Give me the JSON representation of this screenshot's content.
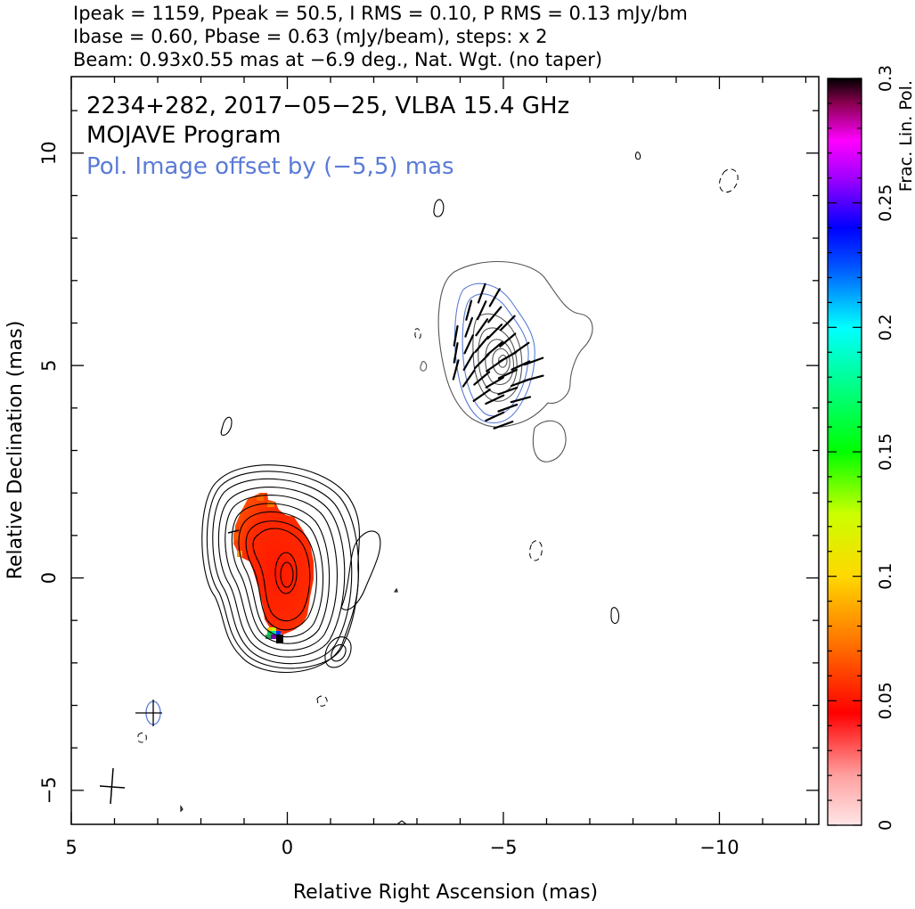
{
  "header": {
    "line1": "Ipeak = 1159, Ppeak = 50.5, I RMS = 0.10, P RMS = 0.13 mJy/bm",
    "line2": "Ibase = 0.60, Pbase = 0.63 (mJy/beam), steps: x 2",
    "line3": "Beam: 0.93x0.55 mas at −6.9 deg., Nat. Wgt. (no taper)"
  },
  "plot": {
    "title_source": "2234+282, 2017−05−25, VLBA 15.4 GHz",
    "title_program": "MOJAVE Program",
    "title_offset": "Pol. Image offset by (−5,5) mas"
  },
  "colors": {
    "pol_contour": "#5a7bd6",
    "offset_text": "#5a7bd6",
    "frac_pol_core": "#ff2a00"
  },
  "chart_data": {
    "type": "contour",
    "xlabel": "Relative Right Ascension (mas)",
    "ylabel": "Relative Declination (mas)",
    "xlim": [
      5,
      -12.3
    ],
    "ylim": [
      -5.8,
      11.8
    ],
    "x_ticks": [
      {
        "value": 5,
        "label": "5"
      },
      {
        "value": 0,
        "label": "0"
      },
      {
        "value": -5,
        "label": "−5"
      },
      {
        "value": -10,
        "label": "−10"
      }
    ],
    "y_ticks": [
      {
        "value": -5,
        "label": "−5"
      },
      {
        "value": 0,
        "label": "0"
      },
      {
        "value": 5,
        "label": "5"
      },
      {
        "value": 10,
        "label": "10"
      }
    ],
    "stokes_I": {
      "peak_mJy_per_beam": 1159,
      "rms_mJy_per_beam": 0.1,
      "base_mJy_per_beam": 0.6,
      "step_factor": 2,
      "core_position": [
        0,
        0
      ],
      "contour_levels": 11
    },
    "polarization": {
      "peak_mJy_per_beam": 50.5,
      "rms_mJy_per_beam": 0.13,
      "base_mJy_per_beam": 0.63,
      "offset_mas": [
        -5,
        5
      ]
    },
    "beam": {
      "major_mas": 0.93,
      "minor_mas": 0.55,
      "pa_deg": -6.9
    },
    "colorbar": {
      "label": "Frac. Lin. Pol.",
      "min": 0,
      "max": 0.3,
      "ticks": [
        {
          "value": 0,
          "label": "0"
        },
        {
          "value": 0.05,
          "label": "0.05"
        },
        {
          "value": 0.1,
          "label": "0.1"
        },
        {
          "value": 0.15,
          "label": "0.15"
        },
        {
          "value": 0.2,
          "label": "0.2"
        },
        {
          "value": 0.25,
          "label": "0.25"
        },
        {
          "value": 0.3,
          "label": "0.3"
        }
      ],
      "stops": [
        {
          "v": 0.0,
          "c": "#ffe6e6"
        },
        {
          "v": 0.02,
          "c": "#ffa0a0"
        },
        {
          "v": 0.045,
          "c": "#ff0000"
        },
        {
          "v": 0.075,
          "c": "#ff7a00"
        },
        {
          "v": 0.1,
          "c": "#ffd800"
        },
        {
          "v": 0.125,
          "c": "#ccff00"
        },
        {
          "v": 0.15,
          "c": "#00ff00"
        },
        {
          "v": 0.18,
          "c": "#00ff9a"
        },
        {
          "v": 0.2,
          "c": "#00ffff"
        },
        {
          "v": 0.225,
          "c": "#0050ff"
        },
        {
          "v": 0.24,
          "c": "#0000ff"
        },
        {
          "v": 0.26,
          "c": "#a000ff"
        },
        {
          "v": 0.275,
          "c": "#ff00ff"
        },
        {
          "v": 0.29,
          "c": "#8a0050"
        },
        {
          "v": 0.3,
          "c": "#000000"
        }
      ]
    },
    "evpa_vectors": [
      {
        "x": -3.9,
        "y": 5.7,
        "angle": 100
      },
      {
        "x": -4.2,
        "y": 6.3,
        "angle": 105
      },
      {
        "x": -4.5,
        "y": 6.7,
        "angle": 110
      },
      {
        "x": -3.9,
        "y": 5.3,
        "angle": 100
      },
      {
        "x": -4.2,
        "y": 5.9,
        "angle": 110
      },
      {
        "x": -4.5,
        "y": 6.3,
        "angle": 115
      },
      {
        "x": -4.8,
        "y": 6.6,
        "angle": 120
      },
      {
        "x": -3.9,
        "y": 4.9,
        "angle": 105
      },
      {
        "x": -4.2,
        "y": 5.5,
        "angle": 115
      },
      {
        "x": -4.5,
        "y": 5.9,
        "angle": 125
      },
      {
        "x": -4.8,
        "y": 6.2,
        "angle": 130
      },
      {
        "x": -5.1,
        "y": 6.0,
        "angle": 135
      },
      {
        "x": -4.2,
        "y": 5.1,
        "angle": 120
      },
      {
        "x": -4.5,
        "y": 5.5,
        "angle": 130
      },
      {
        "x": -4.8,
        "y": 5.8,
        "angle": 135
      },
      {
        "x": -5.1,
        "y": 5.6,
        "angle": 140
      },
      {
        "x": -5.4,
        "y": 5.4,
        "angle": 145
      },
      {
        "x": -4.2,
        "y": 4.7,
        "angle": 125
      },
      {
        "x": -4.5,
        "y": 5.1,
        "angle": 135
      },
      {
        "x": -4.8,
        "y": 5.4,
        "angle": 140
      },
      {
        "x": -5.1,
        "y": 5.2,
        "angle": 150
      },
      {
        "x": -5.4,
        "y": 5.0,
        "angle": 155
      },
      {
        "x": -5.7,
        "y": 5.1,
        "angle": 160
      },
      {
        "x": -4.5,
        "y": 4.7,
        "angle": 140
      },
      {
        "x": -4.8,
        "y": 5.0,
        "angle": 145
      },
      {
        "x": -5.1,
        "y": 4.8,
        "angle": 155
      },
      {
        "x": -5.4,
        "y": 4.6,
        "angle": 160
      },
      {
        "x": -5.7,
        "y": 4.7,
        "angle": 165
      },
      {
        "x": -4.5,
        "y": 4.3,
        "angle": 145
      },
      {
        "x": -4.8,
        "y": 4.6,
        "angle": 150
      },
      {
        "x": -5.1,
        "y": 4.4,
        "angle": 160
      },
      {
        "x": -5.4,
        "y": 4.2,
        "angle": 165
      },
      {
        "x": -4.8,
        "y": 4.2,
        "angle": 155
      },
      {
        "x": -5.1,
        "y": 4.0,
        "angle": 160
      },
      {
        "x": -4.8,
        "y": 3.8,
        "angle": 155
      },
      {
        "x": -5.0,
        "y": 3.6,
        "angle": 160
      }
    ]
  }
}
